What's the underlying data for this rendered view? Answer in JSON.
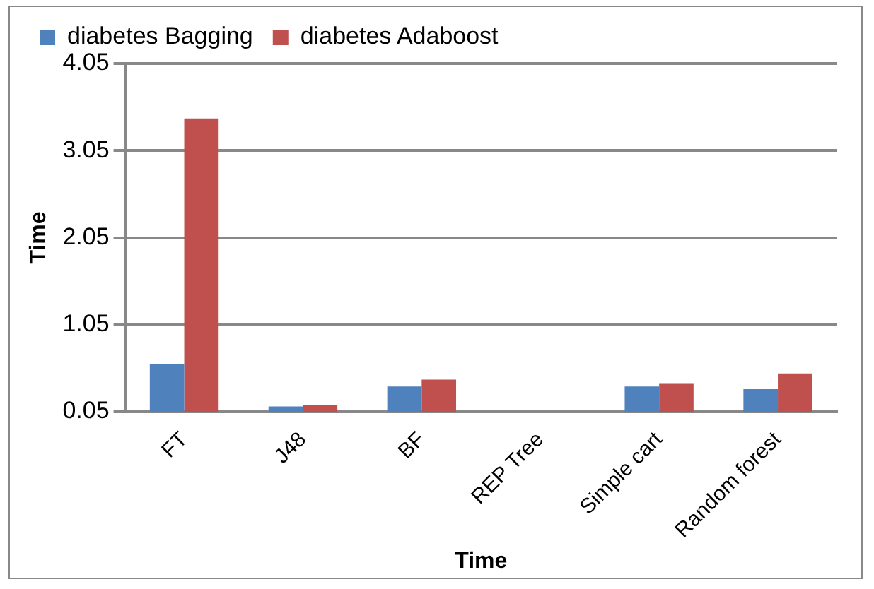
{
  "chart_data": {
    "type": "bar",
    "xlabel": "Time",
    "ylabel": "Time",
    "categories": [
      "FT",
      "J48",
      "BF",
      "REP Tree",
      "Simple cart",
      "Random forest"
    ],
    "series": [
      {
        "name": "diabetes Bagging",
        "color": "#4f81bd",
        "values": [
          0.6,
          0.11,
          0.34,
          0.05,
          0.34,
          0.31
        ]
      },
      {
        "name": "diabetes Adaboost",
        "color": "#c0504d",
        "values": [
          3.42,
          0.13,
          0.42,
          0.05,
          0.37,
          0.49
        ]
      }
    ],
    "ylim": [
      0.05,
      4.05
    ],
    "yticks": [
      0.05,
      1.05,
      2.05,
      3.05,
      4.05
    ],
    "grid": "y",
    "legend": "top"
  }
}
